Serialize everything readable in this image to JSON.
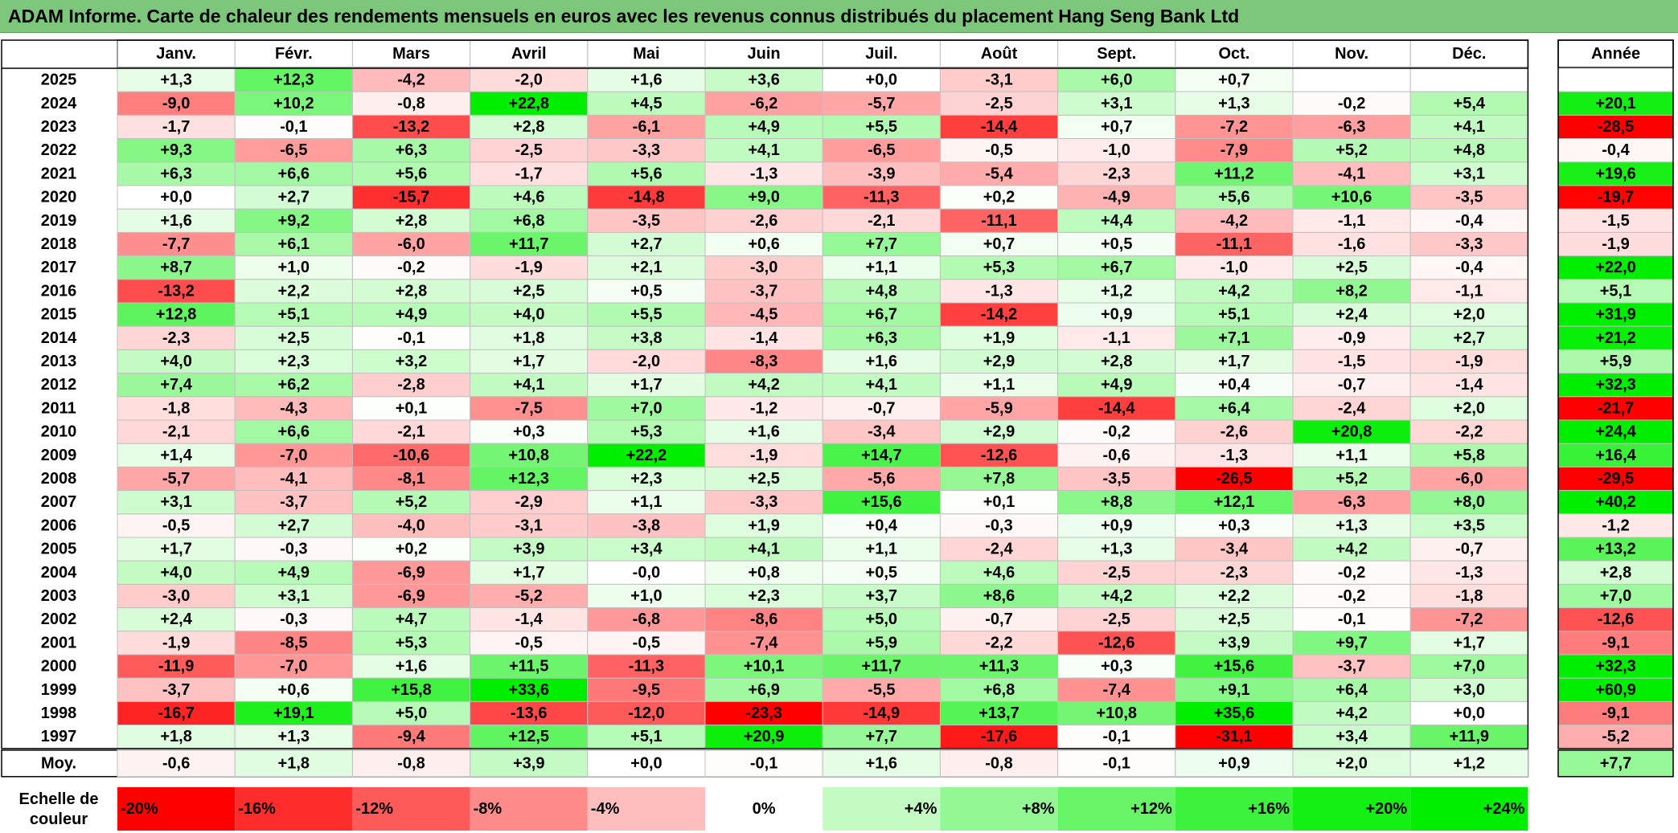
{
  "title": "ADAM Informe. Carte de chaleur des rendements mensuels en euros avec les revenus connus distribués du placement Hang Seng Bank Ltd",
  "chart_data": {
    "type": "heatmap",
    "title": "ADAM Informe. Carte de chaleur des rendements mensuels en euros avec les revenus connus distribués du placement Hang Seng Bank Ltd",
    "months": [
      "Janv.",
      "Févr.",
      "Mars",
      "Avril",
      "Mai",
      "Juin",
      "Juil.",
      "Août",
      "Sept.",
      "Oct.",
      "Nov.",
      "Déc."
    ],
    "year_header": "Année",
    "years": [
      "2025",
      "2024",
      "2023",
      "2022",
      "2021",
      "2020",
      "2019",
      "2018",
      "2017",
      "2016",
      "2015",
      "2014",
      "2013",
      "2012",
      "2011",
      "2010",
      "2009",
      "2008",
      "2007",
      "2006",
      "2005",
      "2004",
      "2003",
      "2002",
      "2001",
      "2000",
      "1999",
      "1998",
      "1997"
    ],
    "values": [
      [
        "+1,3",
        "+12,3",
        "-4,2",
        "-2,0",
        "+1,6",
        "+3,6",
        "+0,0",
        "-3,1",
        "+6,0",
        "+0,7",
        "",
        ""
      ],
      [
        "-9,0",
        "+10,2",
        "-0,8",
        "+22,8",
        "+4,5",
        "-6,2",
        "-5,7",
        "-2,5",
        "+3,1",
        "+1,3",
        "-0,2",
        "+5,4"
      ],
      [
        "-1,7",
        "-0,1",
        "-13,2",
        "+2,8",
        "-6,1",
        "+4,9",
        "+5,5",
        "-14,4",
        "+0,7",
        "-7,2",
        "-6,3",
        "+4,1"
      ],
      [
        "+9,3",
        "-6,5",
        "+6,3",
        "-2,5",
        "-3,3",
        "+4,1",
        "-6,5",
        "-0,5",
        "-1,0",
        "-7,9",
        "+5,2",
        "+4,8"
      ],
      [
        "+6,3",
        "+6,6",
        "+5,6",
        "-1,7",
        "+5,6",
        "-1,3",
        "-3,9",
        "-5,4",
        "-2,3",
        "+11,2",
        "-4,1",
        "+3,1"
      ],
      [
        "+0,0",
        "+2,7",
        "-15,7",
        "+4,6",
        "-14,8",
        "+9,0",
        "-11,3",
        "+0,2",
        "-4,9",
        "+5,6",
        "+10,6",
        "-3,5"
      ],
      [
        "+1,6",
        "+9,2",
        "+2,8",
        "+6,8",
        "-3,5",
        "-2,6",
        "-2,1",
        "-11,1",
        "+4,4",
        "-4,2",
        "-1,1",
        "-0,4"
      ],
      [
        "-7,7",
        "+6,1",
        "-6,0",
        "+11,7",
        "+2,7",
        "+0,6",
        "+7,7",
        "+0,7",
        "+0,5",
        "-11,1",
        "-1,6",
        "-3,3"
      ],
      [
        "+8,7",
        "+1,0",
        "-0,2",
        "-1,9",
        "+2,1",
        "-3,0",
        "+1,1",
        "+5,3",
        "+6,7",
        "-1,0",
        "+2,5",
        "-0,4"
      ],
      [
        "-13,2",
        "+2,2",
        "+2,8",
        "+2,5",
        "+0,5",
        "-3,7",
        "+4,8",
        "-1,3",
        "+1,2",
        "+4,2",
        "+8,2",
        "-1,1"
      ],
      [
        "+12,8",
        "+5,1",
        "+4,9",
        "+4,0",
        "+5,5",
        "-4,5",
        "+6,7",
        "-14,2",
        "+0,9",
        "+5,1",
        "+2,4",
        "+2,0"
      ],
      [
        "-2,3",
        "+2,5",
        "-0,1",
        "+1,8",
        "+3,8",
        "-1,4",
        "+6,3",
        "+1,9",
        "-1,1",
        "+7,1",
        "-0,9",
        "+2,7"
      ],
      [
        "+4,0",
        "+2,3",
        "+3,2",
        "+1,7",
        "-2,0",
        "-8,3",
        "+1,6",
        "+2,9",
        "+2,8",
        "+1,7",
        "-1,5",
        "-1,9"
      ],
      [
        "+7,4",
        "+6,2",
        "-2,8",
        "+4,1",
        "+1,7",
        "+4,2",
        "+4,1",
        "+1,1",
        "+4,9",
        "+0,4",
        "-0,7",
        "-1,4"
      ],
      [
        "-1,8",
        "-4,3",
        "+0,1",
        "-7,5",
        "+7,0",
        "-1,2",
        "-0,7",
        "-5,9",
        "-14,4",
        "+6,4",
        "-2,4",
        "+2,0"
      ],
      [
        "-2,1",
        "+6,6",
        "-2,1",
        "+0,3",
        "+5,3",
        "+1,6",
        "-3,4",
        "+2,9",
        "-0,2",
        "-2,6",
        "+20,8",
        "-2,2"
      ],
      [
        "+1,4",
        "-7,0",
        "-10,6",
        "+10,8",
        "+22,2",
        "-1,9",
        "+14,7",
        "-12,6",
        "-0,6",
        "-1,3",
        "+1,1",
        "+5,8"
      ],
      [
        "-5,7",
        "-4,1",
        "-8,1",
        "+12,3",
        "+2,3",
        "+2,5",
        "-5,6",
        "+7,8",
        "-3,5",
        "-26,5",
        "+5,2",
        "-6,0"
      ],
      [
        "+3,1",
        "-3,7",
        "+5,2",
        "-2,9",
        "+1,1",
        "-3,3",
        "+15,6",
        "+0,1",
        "+8,8",
        "+12,1",
        "-6,3",
        "+8,0"
      ],
      [
        "-0,5",
        "+2,7",
        "-4,0",
        "-3,1",
        "-3,8",
        "+1,9",
        "+0,4",
        "-0,3",
        "+0,9",
        "+0,3",
        "+1,3",
        "+3,5"
      ],
      [
        "+1,7",
        "-0,3",
        "+0,2",
        "+3,9",
        "+3,4",
        "+4,1",
        "+1,1",
        "-2,4",
        "+1,3",
        "-3,4",
        "+4,2",
        "-0,7"
      ],
      [
        "+4,0",
        "+4,9",
        "-6,9",
        "+1,7",
        "-0,0",
        "+0,8",
        "+0,5",
        "+4,6",
        "-2,5",
        "-2,3",
        "-0,2",
        "-1,3"
      ],
      [
        "-3,0",
        "+3,1",
        "-6,9",
        "-5,2",
        "+1,0",
        "+2,3",
        "+3,7",
        "+8,6",
        "+4,2",
        "+2,2",
        "-0,2",
        "-1,8"
      ],
      [
        "+2,4",
        "-0,3",
        "+4,7",
        "-1,4",
        "-6,8",
        "-8,6",
        "+5,0",
        "-0,7",
        "-2,5",
        "+2,5",
        "-0,1",
        "-7,2"
      ],
      [
        "-1,9",
        "-8,5",
        "+5,3",
        "-0,5",
        "-0,5",
        "-7,4",
        "+5,9",
        "-2,2",
        "-12,6",
        "+3,9",
        "+9,7",
        "+1,7"
      ],
      [
        "-11,9",
        "-7,0",
        "+1,6",
        "+11,5",
        "-11,3",
        "+10,1",
        "+11,7",
        "+11,3",
        "+0,3",
        "+15,6",
        "-3,7",
        "+7,0"
      ],
      [
        "-3,7",
        "+0,6",
        "+15,8",
        "+33,6",
        "-9,5",
        "+6,9",
        "-5,5",
        "+6,8",
        "-7,4",
        "+9,1",
        "+6,4",
        "+3,0"
      ],
      [
        "-16,7",
        "+19,1",
        "+5,0",
        "-13,6",
        "-12,0",
        "-23,3",
        "-14,9",
        "+13,7",
        "+10,8",
        "+35,6",
        "+4,2",
        "+0,0"
      ],
      [
        "+1,8",
        "+1,3",
        "-9,4",
        "+12,5",
        "+5,1",
        "+20,9",
        "+7,7",
        "-17,6",
        "-0,1",
        "-31,1",
        "+3,4",
        "+11,9"
      ]
    ],
    "annual": [
      "",
      "+20,1",
      "-28,5",
      "-0,4",
      "+19,6",
      "-19,7",
      "-1,5",
      "-1,9",
      "+22,0",
      "+5,1",
      "+31,9",
      "+21,2",
      "+5,9",
      "+32,3",
      "-21,7",
      "+24,4",
      "+16,4",
      "-29,5",
      "+40,2",
      "-1,2",
      "+13,2",
      "+2,8",
      "+7,0",
      "-12,6",
      "-9,1",
      "+32,3",
      "+60,9",
      "-9,1",
      "-5,2"
    ],
    "average_label": "Moy.",
    "averages": [
      "-0,6",
      "+1,8",
      "-0,8",
      "+3,9",
      "+0,0",
      "-0,1",
      "+1,6",
      "-0,8",
      "-0,1",
      "+0,9",
      "+2,0",
      "+1,2"
    ],
    "average_annual": "+7,7",
    "scale_label_line1": "Echelle de",
    "scale_label_line2": "couleur",
    "scale_labels": [
      "-20%",
      "-16%",
      "-12%",
      "-8%",
      "-4%",
      "0%",
      "+4%",
      "+8%",
      "+12%",
      "+16%",
      "+20%",
      "+24%"
    ],
    "scale_values": [
      -20,
      -16,
      -12,
      -8,
      -4,
      0,
      4,
      8,
      12,
      16,
      20,
      24
    ],
    "colors": {
      "negative_max": "#ff0000",
      "positive_max": "#00ee00",
      "neutral": "#ffffff",
      "title_bar": "#7dc77d"
    }
  }
}
